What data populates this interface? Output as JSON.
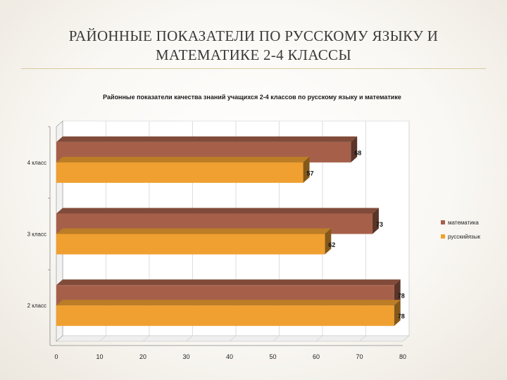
{
  "slide": {
    "title_line1": "РАЙОННЫЕ ПОКАЗАТЕЛИ ПО РУССКОМУ ЯЗЫКУ И",
    "title_line2": "МАТЕМАТИКЕ 2-4 КЛАССЫ"
  },
  "chart_data": {
    "type": "bar",
    "orientation": "horizontal",
    "style": "3d",
    "title": "Районные показатели  качества знаний учащихся 2-4 классов по русскому языку и математике",
    "categories": [
      "2 класс",
      "3 класс",
      "4 класс"
    ],
    "series": [
      {
        "name": "математика",
        "values": [
          78,
          73,
          68
        ],
        "color": "#a6604a"
      },
      {
        "name": "русскийязык",
        "values": [
          78,
          62,
          57
        ],
        "color": "#f0a030"
      }
    ],
    "xlim": [
      0,
      80
    ],
    "x_ticks": [
      0,
      10,
      20,
      30,
      40,
      50,
      60,
      70,
      80
    ],
    "grid": true,
    "legend_position": "right",
    "data_labels": true
  }
}
